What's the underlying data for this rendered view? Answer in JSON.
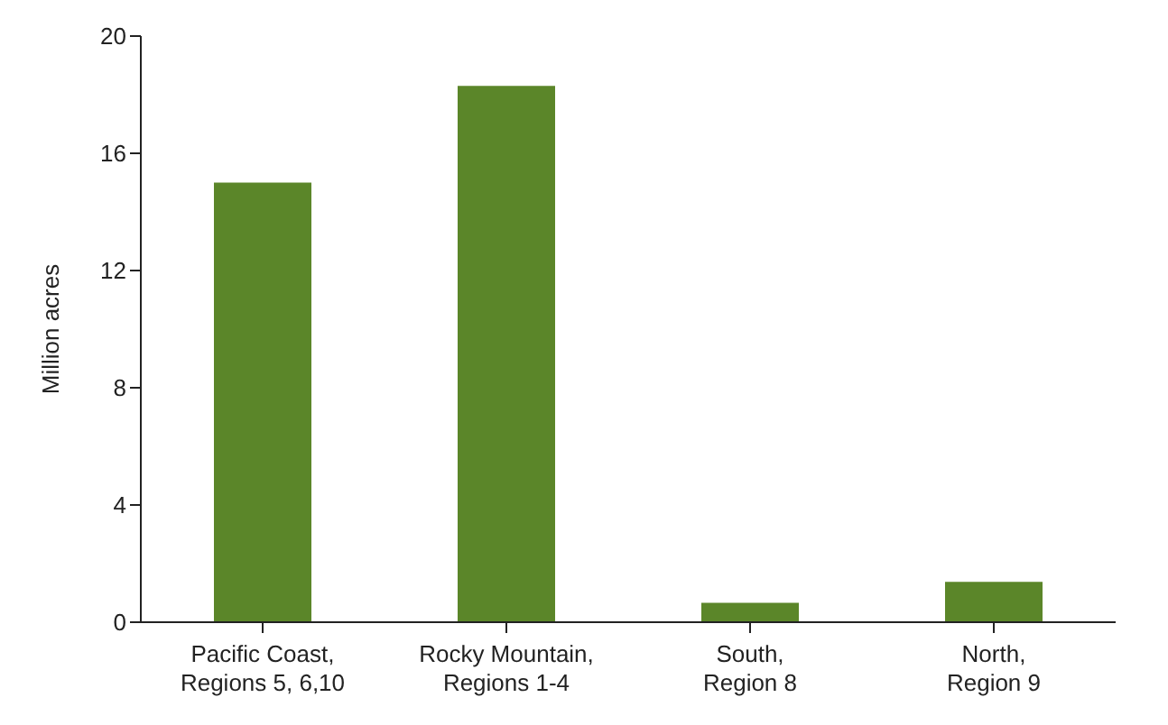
{
  "chart_data": {
    "type": "bar",
    "ylabel": "Million acres",
    "categories": [
      "Pacific Coast, Regions 5, 6,10",
      "Rocky Mountain, Regions 1-4",
      "South, Region 8",
      "North, Region 9"
    ],
    "values": [
      15.0,
      18.3,
      0.66,
      1.38
    ],
    "color": "#5b8629",
    "ylim": [
      0,
      20
    ],
    "yticks": [
      0,
      4,
      8,
      12,
      16,
      20
    ],
    "grid": false
  }
}
